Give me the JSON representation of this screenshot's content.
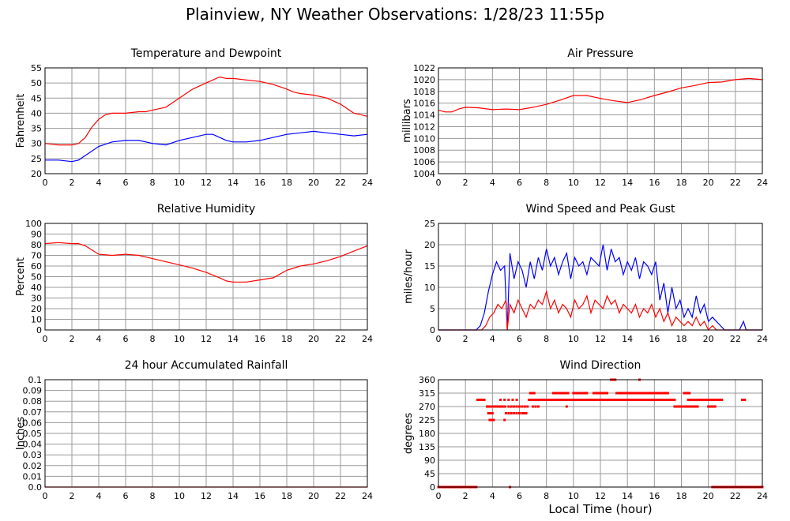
{
  "page": {
    "title": "Plainview, NY Weather Observations: 1/28/23 11:55p",
    "x_axis_label": "Local Time (hour)"
  },
  "chart_data": [
    {
      "id": "temp",
      "type": "line",
      "title": "Temperature and Dewpoint",
      "ylabel": "Fahrenheit",
      "xlabel": "",
      "xlim": [
        0,
        24
      ],
      "ylim": [
        20,
        55
      ],
      "yticks": [
        20,
        25,
        30,
        35,
        40,
        45,
        50,
        55
      ],
      "xticks": [
        0,
        2,
        4,
        6,
        8,
        10,
        12,
        14,
        16,
        18,
        20,
        22,
        24
      ],
      "grid": true,
      "series": [
        {
          "color": "#ff0000",
          "x": [
            0,
            1,
            2,
            2.5,
            3,
            3.5,
            4,
            4.5,
            5,
            6,
            7,
            7.5,
            8,
            9,
            10,
            11,
            12,
            12.5,
            13,
            13.5,
            14,
            15,
            16,
            17,
            18,
            18.5,
            19,
            20,
            21,
            22,
            23,
            23.5,
            24
          ],
          "y": [
            30,
            29.5,
            29.5,
            30,
            32,
            35.5,
            38,
            39.5,
            40,
            40,
            40.5,
            40.5,
            41,
            42,
            45,
            48,
            50,
            51,
            52,
            51.5,
            51.5,
            51,
            50.5,
            49.5,
            48,
            47,
            46.5,
            46,
            45,
            43,
            40,
            39.5,
            39
          ]
        },
        {
          "color": "#0000ff",
          "x": [
            0,
            1,
            2,
            2.5,
            3,
            4,
            5,
            6,
            7,
            8,
            9,
            10,
            11,
            12,
            12.5,
            13,
            13.5,
            14,
            15,
            16,
            17,
            18,
            19,
            20,
            21,
            22,
            23,
            24
          ],
          "y": [
            24.5,
            24.5,
            24,
            24.5,
            26,
            29,
            30.5,
            31,
            31,
            30,
            29.5,
            31,
            32,
            33,
            33,
            32,
            31,
            30.5,
            30.5,
            31,
            32,
            33,
            33.5,
            34,
            33.5,
            33,
            32.5,
            33
          ]
        }
      ]
    },
    {
      "id": "pressure",
      "type": "line",
      "title": "Air Pressure",
      "ylabel": "millibars",
      "xlabel": "",
      "xlim": [
        0,
        24
      ],
      "ylim": [
        1004,
        1022
      ],
      "yticks": [
        1004,
        1006,
        1008,
        1010,
        1012,
        1014,
        1016,
        1018,
        1020,
        1022
      ],
      "xticks": [
        0,
        2,
        4,
        6,
        8,
        10,
        12,
        14,
        16,
        18,
        20,
        22,
        24
      ],
      "grid": true,
      "series": [
        {
          "color": "#ff0000",
          "x": [
            0,
            0.5,
            1,
            1.5,
            2,
            3,
            4,
            5,
            6,
            7,
            8,
            9,
            10,
            11,
            12,
            13,
            14,
            15,
            16,
            17,
            18,
            19,
            20,
            21,
            22,
            23,
            24
          ],
          "y": [
            1014.8,
            1014.5,
            1014.5,
            1015,
            1015.3,
            1015.2,
            1014.9,
            1015,
            1014.9,
            1015.3,
            1015.8,
            1016.5,
            1017.3,
            1017.3,
            1016.8,
            1016.4,
            1016.1,
            1016.6,
            1017.3,
            1017.9,
            1018.6,
            1019,
            1019.5,
            1019.6,
            1020,
            1020.2,
            1020
          ]
        }
      ]
    },
    {
      "id": "humidity",
      "type": "line",
      "title": "Relative Humidity",
      "ylabel": "Percent",
      "xlabel": "",
      "xlim": [
        0,
        24
      ],
      "ylim": [
        0,
        100
      ],
      "yticks": [
        0,
        10,
        20,
        30,
        40,
        50,
        60,
        70,
        80,
        90,
        100
      ],
      "xticks": [
        0,
        2,
        4,
        6,
        8,
        10,
        12,
        14,
        16,
        18,
        20,
        22,
        24
      ],
      "grid": true,
      "series": [
        {
          "color": "#ff0000",
          "x": [
            0,
            1,
            2,
            2.5,
            3,
            3.5,
            4,
            5,
            6,
            7,
            8,
            9,
            10,
            11,
            12,
            13,
            13.5,
            14,
            15,
            16,
            17,
            18,
            19,
            20,
            21,
            22,
            23,
            24
          ],
          "y": [
            81,
            82,
            81,
            81,
            79,
            75,
            71,
            70,
            71,
            70,
            67,
            64,
            61,
            58,
            54,
            49,
            46,
            45,
            45,
            47,
            49,
            56,
            60,
            62,
            65,
            69,
            74,
            79
          ]
        }
      ]
    },
    {
      "id": "wind",
      "type": "line",
      "title": "Wind Speed and Peak Gust",
      "ylabel": "miles/hour",
      "xlabel": "",
      "xlim": [
        0,
        24
      ],
      "ylim": [
        0,
        25
      ],
      "yticks": [
        0,
        5,
        10,
        15,
        20,
        25
      ],
      "xticks": [
        0,
        2,
        4,
        6,
        8,
        10,
        12,
        14,
        16,
        18,
        20,
        22,
        24
      ],
      "grid": true,
      "series": [
        {
          "color": "#0000ff",
          "x": [
            0,
            2.8,
            3.1,
            3.4,
            3.7,
            4,
            4.3,
            4.6,
            4.9,
            5.1,
            5.3,
            5.6,
            5.9,
            6.2,
            6.5,
            6.8,
            7.1,
            7.4,
            7.7,
            8,
            8.3,
            8.6,
            8.9,
            9.2,
            9.5,
            9.8,
            10.1,
            10.4,
            10.7,
            11,
            11.3,
            11.6,
            11.9,
            12.2,
            12.5,
            12.8,
            13.1,
            13.4,
            13.7,
            14,
            14.3,
            14.6,
            14.9,
            15.2,
            15.5,
            15.8,
            16.1,
            16.4,
            16.7,
            17,
            17.3,
            17.6,
            17.9,
            18.2,
            18.5,
            18.8,
            19.1,
            19.4,
            19.7,
            20,
            20.3,
            20.6,
            20.9,
            21.2,
            21.5,
            22,
            22.3,
            22.6,
            22.8,
            24
          ],
          "y": [
            0,
            0,
            1,
            4,
            9,
            13,
            16,
            14,
            15,
            0,
            18,
            12,
            16,
            14,
            10,
            16,
            12,
            17,
            14,
            19,
            15,
            17,
            13,
            16,
            18,
            12,
            17,
            15,
            16,
            13,
            17,
            16,
            15,
            20,
            14,
            19,
            16,
            17,
            13,
            16,
            14,
            17,
            12,
            16,
            15,
            13,
            16,
            7,
            11,
            4,
            10,
            5,
            7,
            3,
            5,
            3,
            8,
            4,
            6,
            2,
            3,
            2,
            1,
            0,
            0,
            0,
            0,
            2,
            0,
            0
          ]
        },
        {
          "color": "#ff0000",
          "x": [
            0,
            3.2,
            3.5,
            3.8,
            4.1,
            4.4,
            4.7,
            5,
            5.1,
            5.3,
            5.6,
            5.9,
            6.2,
            6.5,
            6.8,
            7.1,
            7.4,
            7.7,
            8,
            8.3,
            8.6,
            8.9,
            9.2,
            9.5,
            9.8,
            10.1,
            10.4,
            10.7,
            11,
            11.3,
            11.6,
            11.9,
            12.2,
            12.5,
            12.8,
            13.1,
            13.4,
            13.7,
            14,
            14.3,
            14.6,
            14.9,
            15.2,
            15.5,
            15.8,
            16.1,
            16.4,
            16.7,
            17,
            17.3,
            17.6,
            17.9,
            18.2,
            18.5,
            18.8,
            19.1,
            19.4,
            19.7,
            20,
            20.3,
            20.6,
            24
          ],
          "y": [
            0,
            0,
            1,
            3,
            4,
            6,
            5,
            7,
            0,
            6,
            4,
            7,
            5,
            3,
            6,
            5,
            7,
            6,
            9,
            5,
            7,
            4,
            6,
            5,
            3,
            7,
            5,
            6,
            8,
            4,
            7,
            6,
            5,
            8,
            6,
            7,
            4,
            6,
            5,
            4,
            6,
            3,
            5,
            4,
            6,
            3,
            5,
            2,
            4,
            1,
            3,
            2,
            1,
            2,
            1,
            3,
            1,
            2,
            0,
            1,
            0,
            0
          ]
        }
      ]
    },
    {
      "id": "rain",
      "type": "line",
      "title": "24 hour Accumulated Rainfall",
      "ylabel": "Inches",
      "xlabel": "",
      "xlim": [
        0,
        24
      ],
      "ylim": [
        0,
        0.1
      ],
      "yticks": [
        "0.0",
        "0.01",
        "0.02",
        "0.03",
        "0.04",
        "0.05",
        "0.06",
        "0.07",
        "0.08",
        "0.09",
        "0.1"
      ],
      "xticks": [
        0,
        2,
        4,
        6,
        8,
        10,
        12,
        14,
        16,
        18,
        20,
        22,
        24
      ],
      "grid": true,
      "series": [
        {
          "color": "#ff0000",
          "x": [
            0,
            24
          ],
          "y": [
            0,
            0
          ]
        }
      ]
    },
    {
      "id": "winddir",
      "type": "scatter",
      "title": "Wind Direction",
      "ylabel": "degrees",
      "xlabel": "Local Time (hour)",
      "xlim": [
        0,
        24
      ],
      "ylim": [
        0,
        360
      ],
      "yticks": [
        0,
        45,
        90,
        135,
        180,
        225,
        270,
        315,
        360
      ],
      "xticks": [
        0,
        2,
        4,
        6,
        8,
        10,
        12,
        14,
        16,
        18,
        20,
        22,
        24
      ],
      "grid": true,
      "series": [
        {
          "color": "#ff0000",
          "groups": [
            {
              "y": 0,
              "x0": 0,
              "x1": 2.8,
              "step": 0.1
            },
            {
              "y": 0,
              "x0": 20.3,
              "x1": 24,
              "step": 0.1
            },
            {
              "y": 0,
              "x0": 5.3,
              "x1": 5.3,
              "step": 0.1
            },
            {
              "y": 292.5,
              "x0": 2.9,
              "x1": 3.4,
              "step": 0.1
            },
            {
              "y": 270,
              "x0": 3.6,
              "x1": 5.0,
              "step": 0.15
            },
            {
              "y": 247.5,
              "x0": 3.7,
              "x1": 4.0,
              "step": 0.1
            },
            {
              "y": 225,
              "x0": 3.8,
              "x1": 4.2,
              "step": 0.15
            },
            {
              "y": 247.5,
              "x0": 5.0,
              "x1": 6.0,
              "step": 0.2
            },
            {
              "y": 270,
              "x0": 5.2,
              "x1": 6.6,
              "step": 0.2
            },
            {
              "y": 292.5,
              "x0": 4.6,
              "x1": 5.9,
              "step": 0.3
            },
            {
              "y": 225,
              "x0": 4.9,
              "x1": 4.9,
              "step": 0.1
            },
            {
              "y": 247.5,
              "x0": 6.2,
              "x1": 6.5,
              "step": 0.1
            },
            {
              "y": 292.5,
              "x0": 6.7,
              "x1": 11.5,
              "step": 0.1
            },
            {
              "y": 315,
              "x0": 6.8,
              "x1": 7.1,
              "step": 0.1
            },
            {
              "y": 270,
              "x0": 7.0,
              "x1": 7.4,
              "step": 0.2
            },
            {
              "y": 315,
              "x0": 8.5,
              "x1": 9.6,
              "step": 0.1
            },
            {
              "y": 270,
              "x0": 9.5,
              "x1": 9.5,
              "step": 0.1
            },
            {
              "y": 315,
              "x0": 10.0,
              "x1": 11.0,
              "step": 0.1
            },
            {
              "y": 292.5,
              "x0": 11.5,
              "x1": 17.5,
              "step": 0.1
            },
            {
              "y": 315,
              "x0": 11.5,
              "x1": 12.5,
              "step": 0.1
            },
            {
              "y": 360,
              "x0": 12.8,
              "x1": 13.1,
              "step": 0.15
            },
            {
              "y": 315,
              "x0": 13.2,
              "x1": 17.0,
              "step": 0.1
            },
            {
              "y": 360,
              "x0": 14.9,
              "x1": 14.9,
              "step": 0.1
            },
            {
              "y": 270,
              "x0": 17.5,
              "x1": 19.2,
              "step": 0.1
            },
            {
              "y": 292.5,
              "x0": 18.5,
              "x1": 21.0,
              "step": 0.1
            },
            {
              "y": 315,
              "x0": 18.2,
              "x1": 18.6,
              "step": 0.1
            },
            {
              "y": 270,
              "x0": 20.0,
              "x1": 20.5,
              "step": 0.1
            },
            {
              "y": 292.5,
              "x0": 22.5,
              "x1": 22.7,
              "step": 0.1
            }
          ]
        }
      ]
    }
  ]
}
